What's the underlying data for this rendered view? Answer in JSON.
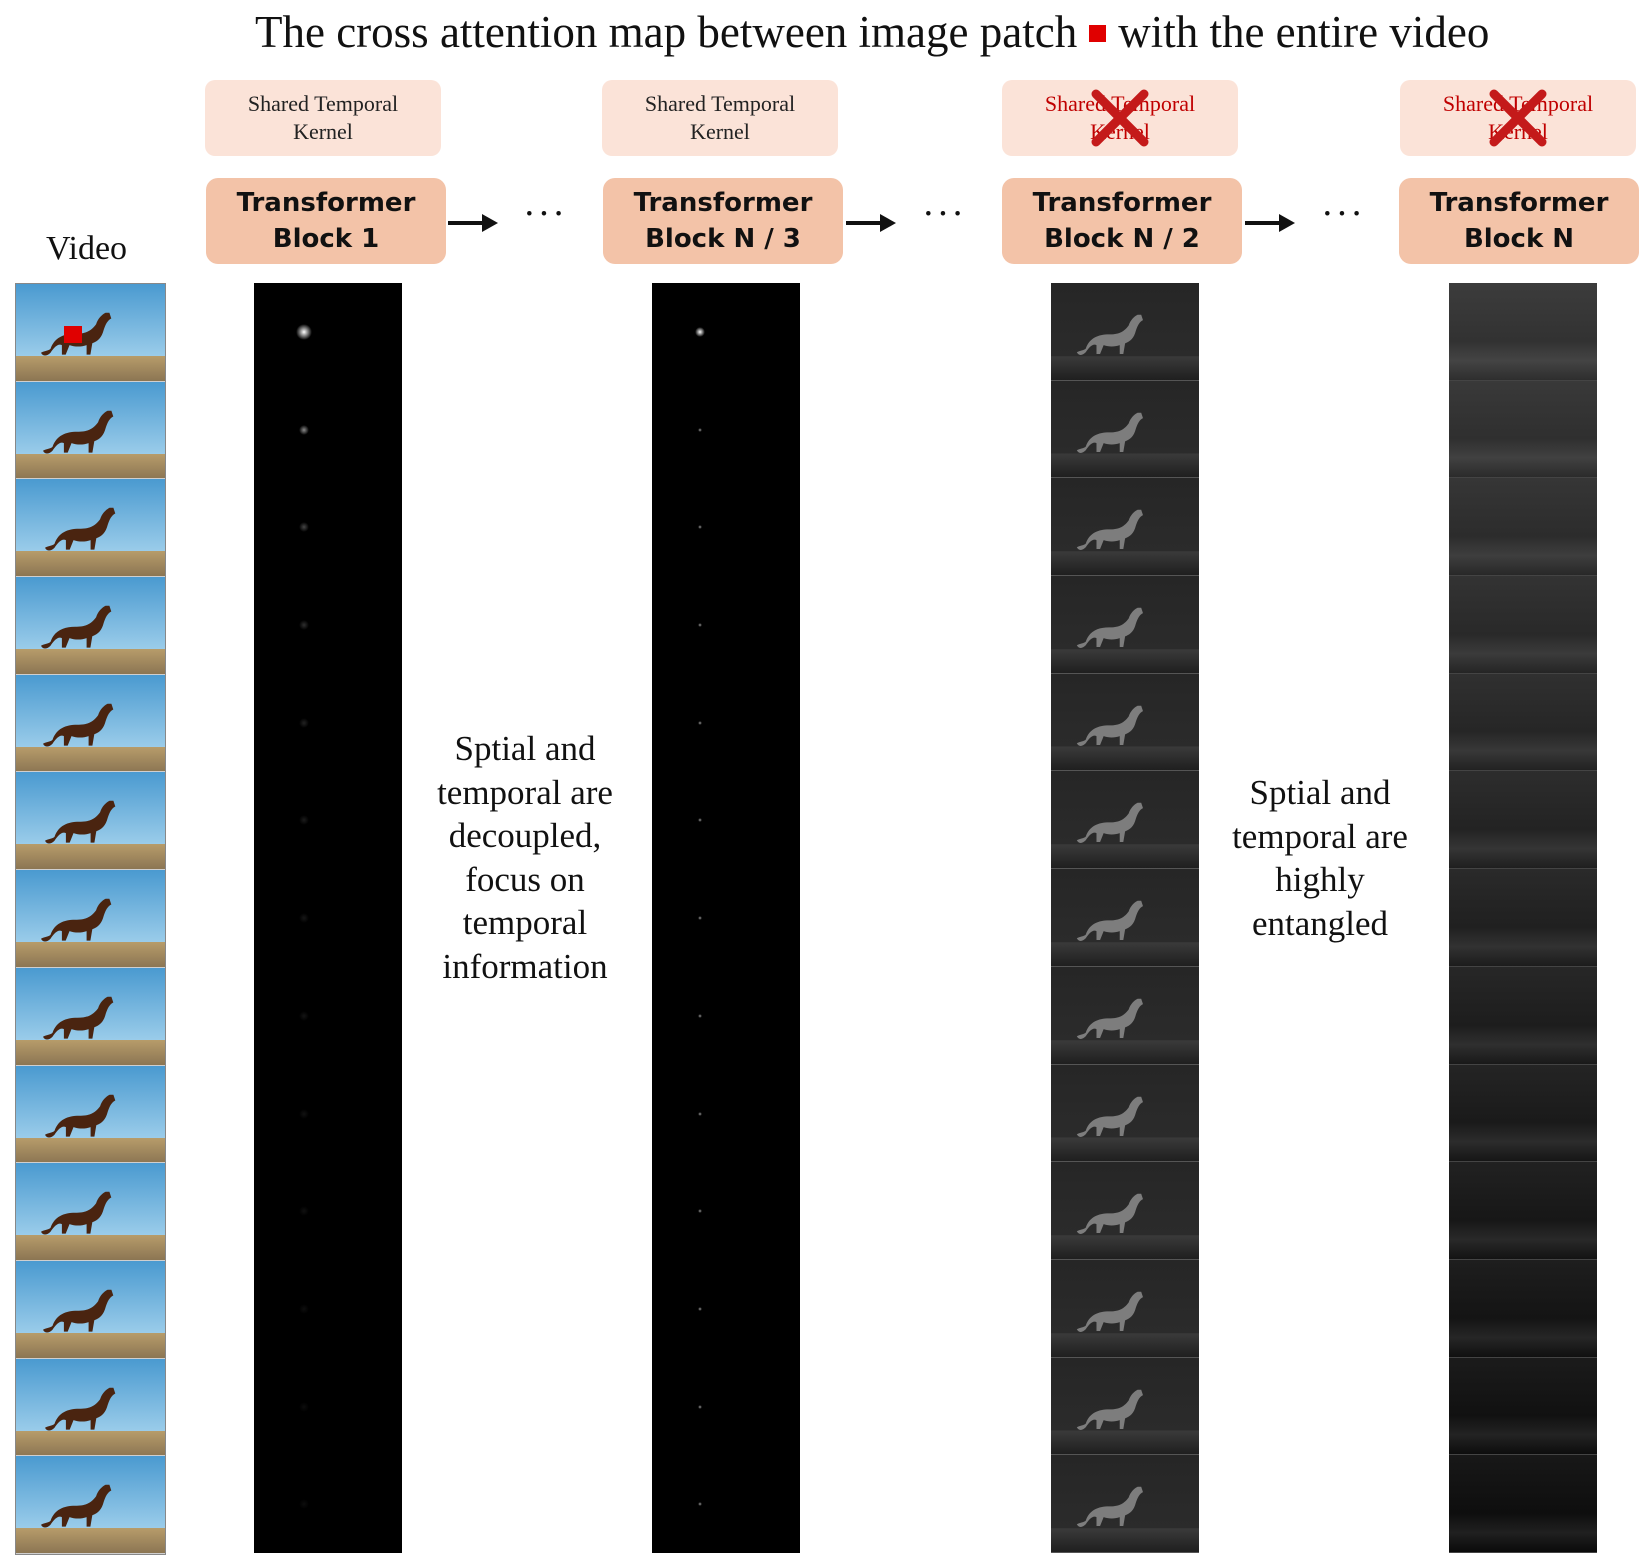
{
  "title": {
    "before": "The cross attention map between image patch",
    "after": "with the entire video",
    "marker_color": "#e00000"
  },
  "video_label": "Video",
  "kernel_label": {
    "line1": "Shared Temporal",
    "line2": "Kernel"
  },
  "blocks": [
    {
      "line1": "Transformer",
      "line2": "Block 1",
      "kernel_active": true
    },
    {
      "line1": "Transformer",
      "line2": "Block N / 3",
      "kernel_active": true
    },
    {
      "line1": "Transformer",
      "line2": "Block N / 2",
      "kernel_active": false
    },
    {
      "line1": "Transformer",
      "line2": "Block N",
      "kernel_active": false
    }
  ],
  "ellipsis": "···",
  "notes": {
    "left": [
      "Sptial and",
      "temporal are",
      "decoupled,",
      "focus on",
      "temporal",
      "information"
    ],
    "right": [
      "Sptial and",
      "temporal are",
      "highly",
      "entangled"
    ]
  },
  "frame_count": 13,
  "colors": {
    "kernel_bg": "#fbe3d8",
    "block_bg": "#f3c3a8",
    "disabled_text": "#c00000",
    "x_mark": "#c41a1a",
    "sky_top": "#4a9ad0",
    "sky_bottom": "#b7def3",
    "ground": "#8a7452"
  },
  "icons": {
    "cross": "x-mark-icon",
    "arrow": "right-arrow-icon",
    "horse": "horse-icon"
  }
}
